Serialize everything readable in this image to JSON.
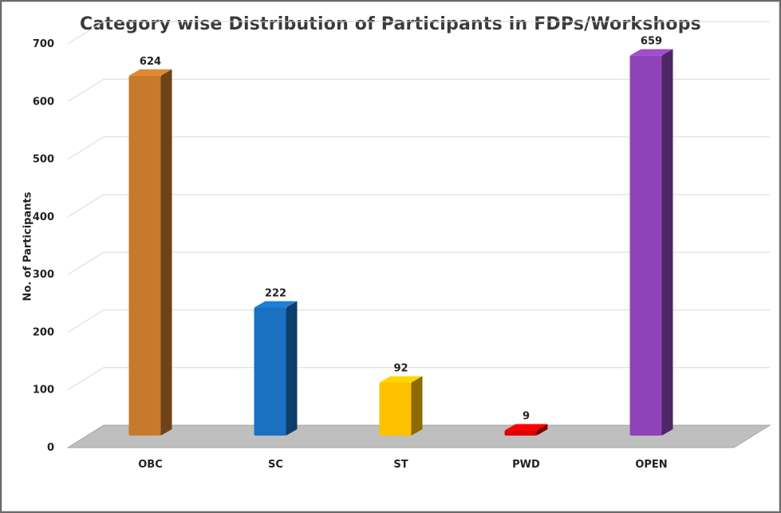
{
  "chart_data": {
    "type": "bar",
    "title": "Category wise Distribution of Participants in FDPs/Workshops",
    "xlabel": "",
    "ylabel": "No. of Participants",
    "categories": [
      "OBC",
      "SC",
      "ST",
      "PWD",
      "OPEN"
    ],
    "values": [
      624,
      222,
      92,
      9,
      659
    ],
    "data_labels": [
      "624",
      "222",
      "92",
      "9",
      "659"
    ],
    "colors": [
      "#C87A2C",
      "#1A71C1",
      "#FFC000",
      "#E00000",
      "#8E44B8"
    ],
    "ylim": [
      0,
      700
    ],
    "yticks": [
      "0",
      "100",
      "200",
      "300",
      "400",
      "500",
      "600",
      "700"
    ],
    "grid": true,
    "legend": "none",
    "style": "3d-column"
  }
}
